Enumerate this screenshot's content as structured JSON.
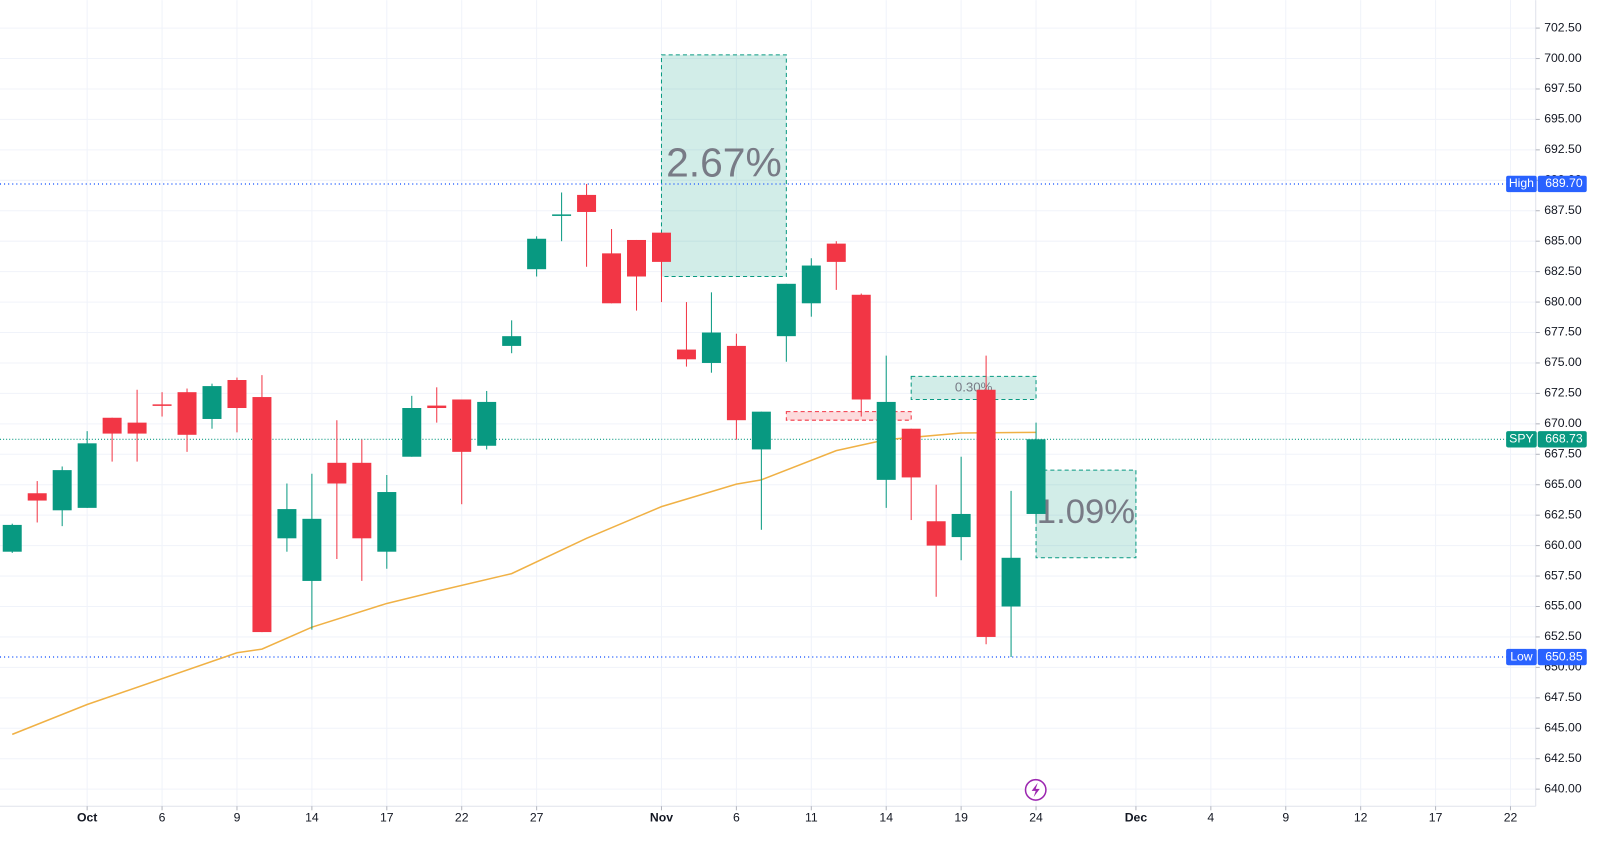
{
  "chart_data": {
    "type": "candlestick",
    "up_color": "#089981",
    "down_color": "#f23645",
    "open": [
      659.5,
      664.3,
      662.9,
      663.1,
      670.5,
      670.1,
      671.6,
      672.6,
      670.4,
      673.6,
      672.2,
      660.6,
      657.1,
      666.8,
      666.8,
      659.5,
      667.3,
      671.5,
      672.0,
      668.2,
      676.4,
      682.7,
      687.1,
      688.8,
      684.0,
      685.1,
      685.7,
      676.1,
      675.0,
      676.4,
      667.9,
      677.2,
      679.9,
      684.8,
      680.6,
      665.4,
      669.6,
      662.0,
      660.7,
      672.8,
      655.0,
      662.6
    ],
    "high": [
      661.8,
      665.3,
      666.5,
      669.4,
      670.5,
      672.8,
      672.6,
      672.9,
      673.3,
      673.8,
      674.0,
      665.1,
      665.9,
      670.3,
      668.7,
      665.8,
      672.3,
      673.0,
      672.0,
      672.7,
      678.5,
      685.4,
      689.0,
      689.7,
      686.0,
      685.1,
      685.7,
      680.0,
      680.8,
      677.4,
      671.0,
      681.5,
      683.6,
      685.0,
      680.7,
      675.6,
      669.6,
      665.0,
      667.3,
      675.6,
      664.5,
      670.1
    ],
    "low": [
      659.4,
      661.9,
      661.6,
      663.1,
      666.9,
      666.9,
      670.6,
      667.7,
      669.6,
      669.3,
      652.9,
      659.5,
      653.1,
      658.9,
      657.1,
      658.1,
      667.3,
      670.1,
      663.4,
      667.9,
      675.8,
      682.1,
      685.0,
      682.9,
      679.9,
      679.3,
      680.0,
      674.7,
      674.2,
      668.7,
      661.3,
      675.1,
      678.8,
      681.0,
      670.6,
      663.1,
      662.1,
      655.8,
      658.8,
      651.9,
      650.85,
      661.8
    ],
    "close": [
      661.7,
      663.7,
      666.2,
      668.4,
      669.2,
      669.2,
      671.5,
      669.1,
      673.1,
      671.3,
      652.9,
      663.0,
      662.2,
      665.1,
      660.6,
      664.4,
      671.3,
      671.3,
      667.7,
      671.8,
      677.2,
      685.2,
      687.2,
      687.4,
      679.9,
      682.1,
      683.3,
      675.3,
      677.5,
      670.3,
      671.0,
      681.5,
      683.0,
      683.3,
      672.0,
      671.8,
      665.6,
      660.0,
      662.6,
      652.5,
      659.0,
      668.73
    ],
    "moving_average": {
      "color": "#f0b145",
      "x": [
        0,
        3,
        9,
        10,
        12,
        15,
        17,
        20,
        23,
        26,
        29,
        30,
        33,
        35,
        38,
        41
      ],
      "values": [
        644.5,
        646.95,
        651.2,
        651.5,
        653.3,
        655.25,
        656.25,
        657.7,
        660.6,
        663.2,
        665.05,
        665.4,
        667.8,
        668.7,
        669.25,
        669.3
      ]
    },
    "xlim": [
      -0.49,
      61.01
    ],
    "xticks": [
      {
        "value": 3,
        "label": "Oct"
      },
      {
        "value": 6,
        "label": "6"
      },
      {
        "value": 9,
        "label": "9"
      },
      {
        "value": 12,
        "label": "14"
      },
      {
        "value": 15,
        "label": "17"
      },
      {
        "value": 18,
        "label": "22"
      },
      {
        "value": 21,
        "label": "27"
      },
      {
        "value": 26,
        "label": "Nov"
      },
      {
        "value": 29,
        "label": "6"
      },
      {
        "value": 32,
        "label": "11"
      },
      {
        "value": 35,
        "label": "14"
      },
      {
        "value": 38,
        "label": "19"
      },
      {
        "value": 41,
        "label": "24"
      },
      {
        "value": 45,
        "label": "Dec"
      },
      {
        "value": 48,
        "label": "4"
      },
      {
        "value": 51,
        "label": "9"
      },
      {
        "value": 54,
        "label": "12"
      },
      {
        "value": 57,
        "label": "17"
      },
      {
        "value": 60,
        "label": "22"
      }
    ],
    "ylim": [
      638.6,
      704.8
    ],
    "yticks": [
      {
        "value": 640,
        "label": "640.00"
      },
      {
        "value": 642.5,
        "label": "642.50"
      },
      {
        "value": 645,
        "label": "645.00"
      },
      {
        "value": 647.5,
        "label": "647.50"
      },
      {
        "value": 650,
        "label": "650.00"
      },
      {
        "value": 652.5,
        "label": "652.50"
      },
      {
        "value": 655,
        "label": "655.00"
      },
      {
        "value": 657.5,
        "label": "657.50"
      },
      {
        "value": 660,
        "label": "660.00"
      },
      {
        "value": 662.5,
        "label": "662.50"
      },
      {
        "value": 665,
        "label": "665.00"
      },
      {
        "value": 667.5,
        "label": "667.50"
      },
      {
        "value": 670,
        "label": "670.00"
      },
      {
        "value": 672.5,
        "label": "672.50"
      },
      {
        "value": 675,
        "label": "675.00"
      },
      {
        "value": 677.5,
        "label": "677.50"
      },
      {
        "value": 680,
        "label": "680.00"
      },
      {
        "value": 682.5,
        "label": "682.50"
      },
      {
        "value": 685,
        "label": "685.00"
      },
      {
        "value": 687.5,
        "label": "687.50"
      },
      {
        "value": 690,
        "label": "690.00"
      },
      {
        "value": 692.5,
        "label": "692.50"
      },
      {
        "value": 695,
        "label": "695.00"
      },
      {
        "value": 697.5,
        "label": "697.50"
      },
      {
        "value": 700,
        "label": "700.00"
      },
      {
        "value": 702.5,
        "label": "702.50"
      }
    ],
    "grid": true,
    "high_line": {
      "label": "High",
      "value": 689.7,
      "value_label": "689.70",
      "color": "#2962ff"
    },
    "low_line": {
      "label": "Low",
      "value": 650.85,
      "value_label": "650.85",
      "color": "#2962ff"
    },
    "last_price": {
      "label": "SPY",
      "value": 668.73,
      "value_label": "668.73",
      "color": "#089981"
    },
    "annotations": [
      {
        "label": "2.67%",
        "x": [
          26,
          31
        ],
        "y": [
          682.1,
          700.3
        ],
        "color": "#089981",
        "size": 40
      },
      {
        "label": "0.30%",
        "x": [
          36,
          41
        ],
        "y": [
          672.0,
          673.9
        ],
        "color": "#089981",
        "size": 13
      },
      {
        "label": "1.09%",
        "x": [
          41,
          45
        ],
        "y": [
          659.0,
          666.2
        ],
        "color": "#089981",
        "size": 34
      },
      {
        "x": [
          31,
          36
        ],
        "y": [
          670.3,
          671.0
        ],
        "color": "#f23645"
      }
    ]
  }
}
